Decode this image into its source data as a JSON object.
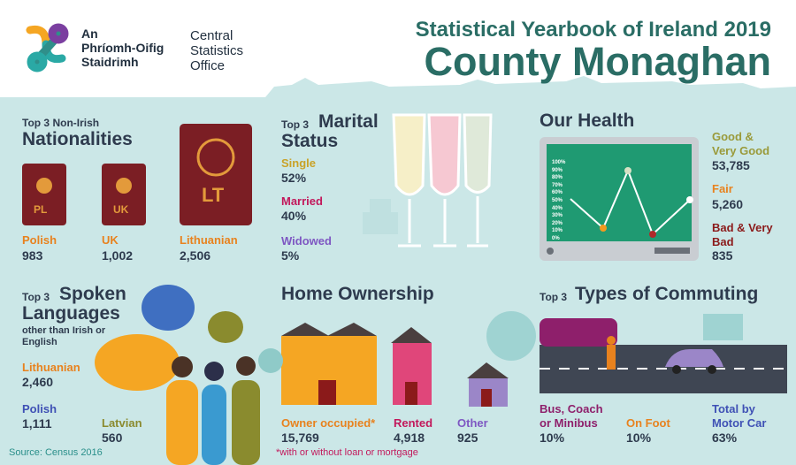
{
  "logo": {
    "irish": [
      "An",
      "Phríomh-Oifig",
      "Staidrimh"
    ],
    "english": [
      "Central",
      "Statistics",
      "Office"
    ]
  },
  "title": "Statistical Yearbook of Ireland 2019",
  "subtitle": "County Monaghan",
  "nationalities": {
    "kicker": "Top 3 Non-Irish",
    "heading": "Nationalities",
    "items": [
      {
        "badge": "PL",
        "label": "Polish",
        "value": "983"
      },
      {
        "badge": "UK",
        "label": "UK",
        "value": "1,002"
      },
      {
        "badge": "LT",
        "label": "Lithuanian",
        "value": "2,506"
      }
    ]
  },
  "marital": {
    "kicker": "Top 3",
    "heading": [
      "Marital",
      "Status"
    ],
    "items": [
      {
        "label": "Single",
        "value": "52%"
      },
      {
        "label": "Married",
        "value": "40%"
      },
      {
        "label": "Widowed",
        "value": "5%"
      }
    ]
  },
  "health": {
    "heading": "Our Health",
    "screen_ticks": [
      "100%",
      "90%",
      "80%",
      "70%",
      "60%",
      "50%",
      "40%",
      "30%",
      "20%",
      "10%",
      "0%"
    ],
    "items": [
      {
        "label": "Good & Very Good",
        "value": "53,785"
      },
      {
        "label": "Fair",
        "value": "5,260"
      },
      {
        "label": "Bad & Very Bad",
        "value": "835"
      }
    ]
  },
  "languages": {
    "kicker": "Top 3",
    "heading": [
      "Spoken",
      "Languages"
    ],
    "note": "other than Irish or English",
    "items": [
      {
        "label": "Lithuanian",
        "value": "2,460"
      },
      {
        "label": "Polish",
        "value": "1,111"
      },
      {
        "label": "Latvian",
        "value": "560"
      }
    ]
  },
  "home": {
    "heading": "Home Ownership",
    "items": [
      {
        "label": "Owner occupied*",
        "value": "15,769"
      },
      {
        "label": "Rented",
        "value": "4,918"
      },
      {
        "label": "Other",
        "value": "925"
      }
    ],
    "footnote": "*with or without loan or mortgage"
  },
  "commuting": {
    "kicker": "Top 3",
    "heading": "Types of Commuting",
    "items": [
      {
        "label": "Bus, Coach or Minibus",
        "value": "10%"
      },
      {
        "label": "On Foot",
        "value": "10%"
      },
      {
        "label": "Total by Motor Car",
        "value": "63%"
      }
    ]
  },
  "source": "Source: Census 2016"
}
